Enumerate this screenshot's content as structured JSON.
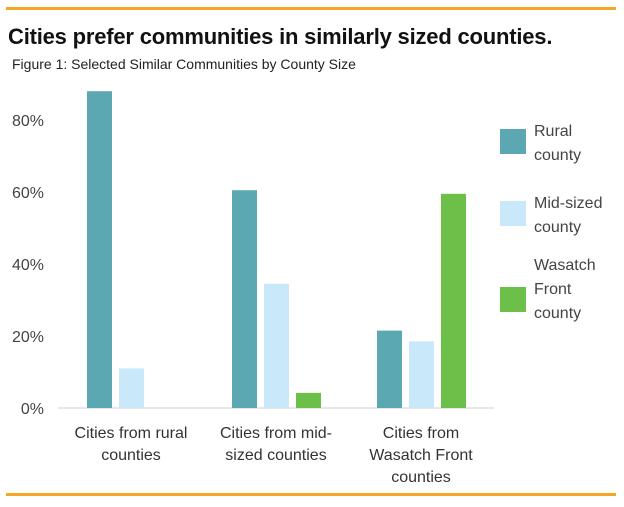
{
  "header": {
    "title": "Cities prefer communities in similarly sized counties.",
    "subtitle": "Figure 1: Selected Similar Communities by County Size"
  },
  "colors": {
    "rule": "#f5a623",
    "rural": "#5ba8b2",
    "mid": "#c9e9fb",
    "wasatch": "#6cc04a"
  },
  "chart_data": {
    "type": "bar",
    "title": "Cities prefer communities in similarly sized counties.",
    "subtitle": "Figure 1: Selected Similar Communities by County Size",
    "xlabel": "",
    "ylabel": "",
    "ylim": [
      0,
      90
    ],
    "y_ticks": [
      "0%",
      "20%",
      "40%",
      "60%",
      "80%"
    ],
    "y_tick_values": [
      0,
      20,
      40,
      60,
      80
    ],
    "categories": [
      [
        "Cities from rural",
        "counties"
      ],
      [
        "Cities from mid-",
        "sized counties"
      ],
      [
        "Cities from",
        "Wasatch Front",
        "counties"
      ]
    ],
    "series": [
      {
        "name": [
          "Rural",
          "county"
        ],
        "color": "#5ba8b2",
        "values": [
          88,
          60.5,
          21.5
        ]
      },
      {
        "name": [
          "Mid-sized",
          "county"
        ],
        "color": "#c9e9fb",
        "values": [
          11,
          34.5,
          18.5
        ]
      },
      {
        "name": [
          "Wasatch",
          "Front",
          "county"
        ],
        "color": "#6cc04a",
        "values": [
          0,
          4.2,
          59.5
        ]
      }
    ],
    "grid": false,
    "legend_position": "right"
  }
}
